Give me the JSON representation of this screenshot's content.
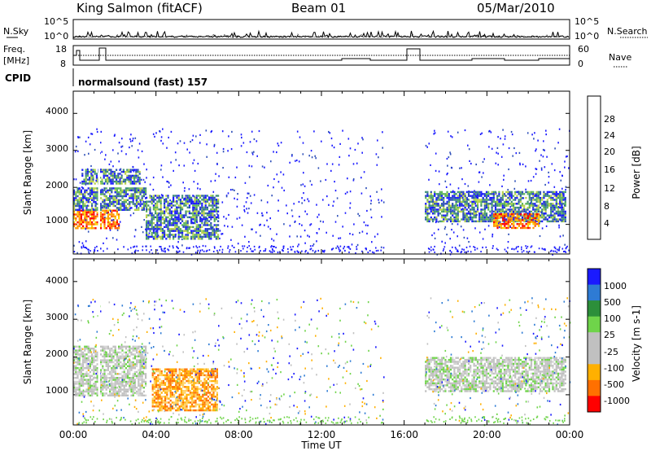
{
  "header": {
    "station": "King Salmon (fitACF)",
    "beam": "Beam 01",
    "date": "05/Mar/2010"
  },
  "status_panels": {
    "nsky_label": "N.Sky",
    "nsky_ticks": [
      "10^5",
      "10^0"
    ],
    "nsearch_label": "N.Search",
    "nsearch_ticks": [
      "10^5",
      "10^0"
    ],
    "freq_label": "Freq.",
    "freq_unit": "[MHz]",
    "freq_ticks": [
      "18",
      "8"
    ],
    "nave_label": "Nave",
    "nave_ticks": [
      "60",
      "0"
    ],
    "cpid_label": "CPID",
    "cpid_text": "normalsound (fast) 157"
  },
  "chart_data": [
    {
      "type": "heatmap",
      "name": "power",
      "ylabel": "Slant Range [km]",
      "yticks": [
        "1000",
        "2000",
        "3000",
        "4000"
      ],
      "ylim": [
        200,
        4600
      ],
      "xlim_hours": [
        0,
        24
      ],
      "colorbar": {
        "label": "Power [dB]",
        "ticks": [
          "4",
          "8",
          "12",
          "16",
          "20",
          "24",
          "28"
        ],
        "colors": [
          "#1a1aff",
          "#2e4fb8",
          "#3f8f7a",
          "#5db45a",
          "#b8d24a",
          "#ffd000",
          "#ff9a00",
          "#ff5a00",
          "#ff0000"
        ]
      },
      "echo_regions": [
        {
          "t": [
            0.0,
            2.2
          ],
          "r": [
            900,
            1400
          ],
          "level": "high"
        },
        {
          "t": [
            0.0,
            3.5
          ],
          "r": [
            1400,
            2000
          ],
          "level": "mid"
        },
        {
          "t": [
            0.4,
            3.2
          ],
          "r": [
            2100,
            2500
          ],
          "level": "mid"
        },
        {
          "t": [
            3.5,
            7.0
          ],
          "r": [
            600,
            1800
          ],
          "level": "mid"
        },
        {
          "t": [
            17.0,
            23.8
          ],
          "r": [
            1100,
            1900
          ],
          "level": "mid"
        },
        {
          "t": [
            20.3,
            22.5
          ],
          "r": [
            900,
            1300
          ],
          "level": "high"
        }
      ]
    },
    {
      "type": "heatmap",
      "name": "velocity",
      "ylabel": "Slant Range [km]",
      "yticks": [
        "1000",
        "2000",
        "3000",
        "4000"
      ],
      "ylim": [
        200,
        4600
      ],
      "xlim_hours": [
        0,
        24
      ],
      "colorbar": {
        "label": "Velocity [m s-1]",
        "ticks": [
          "1000",
          "500",
          "100",
          "25",
          "-25",
          "-100",
          "-500",
          "-1000"
        ],
        "colors": [
          "#1a1aff",
          "#2e7bd4",
          "#2c8f3a",
          "#6fd44a",
          "#c0c0c0",
          "#c0c0c0",
          "#ffb000",
          "#ff7000",
          "#ff0000"
        ]
      },
      "echo_regions": [
        {
          "t": [
            0.0,
            3.5
          ],
          "r": [
            1000,
            2300
          ],
          "level": "near-zero"
        },
        {
          "t": [
            3.8,
            7.0
          ],
          "r": [
            600,
            1700
          ],
          "level": "negative"
        },
        {
          "t": [
            17.0,
            23.8
          ],
          "r": [
            1100,
            2000
          ],
          "level": "near-zero"
        }
      ]
    }
  ],
  "time_axis": {
    "ticks": [
      "00:00",
      "04:00",
      "08:00",
      "12:00",
      "16:00",
      "20:00",
      "00:00"
    ],
    "label": "Time UT",
    "data_gap_hours": [
      15.0,
      17.0
    ]
  }
}
